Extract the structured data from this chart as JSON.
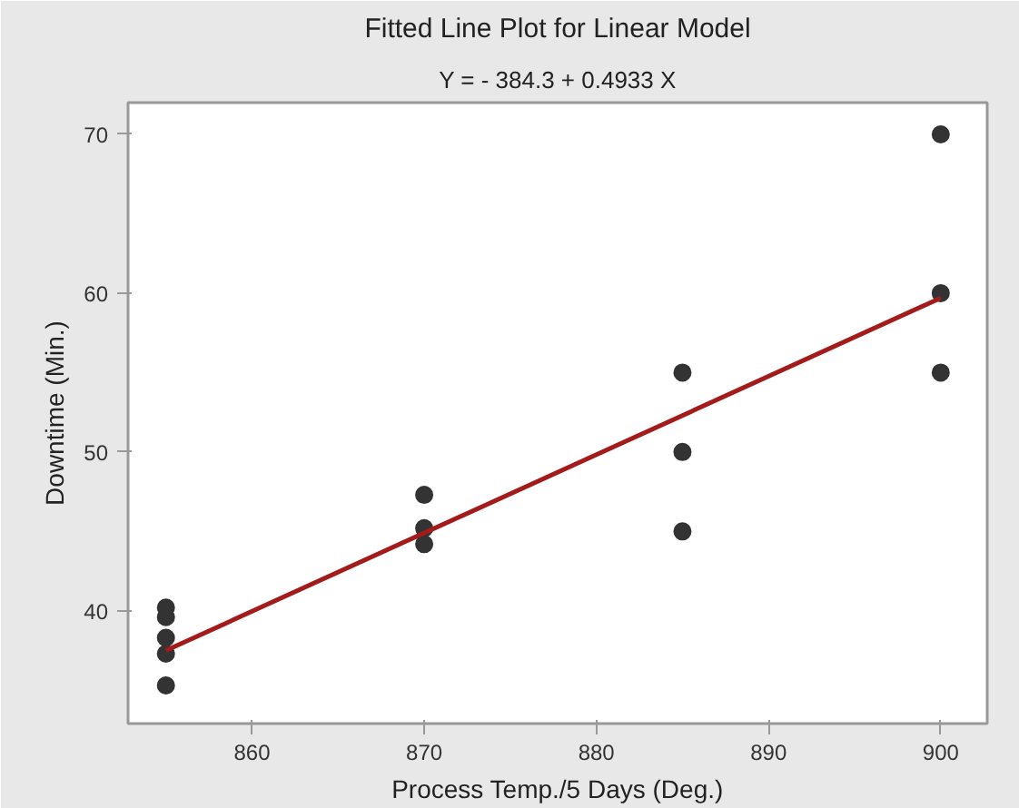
{
  "chart_data": {
    "type": "scatter",
    "title": "Fitted Line Plot for Linear Model",
    "subtitle": "Y = - 384.3 + 0.4933 X",
    "xlabel": "Process Temp./5 Days (Deg.)",
    "ylabel": "Downtime (Min.)",
    "series": [
      {
        "color": "#333333",
        "marker": "circle",
        "x": [
          855,
          855,
          855,
          855,
          855,
          870,
          870,
          870,
          885,
          885,
          885,
          900,
          900,
          900
        ],
        "values": [
          35.3,
          37.3,
          38.3,
          39.6,
          40.2,
          44.2,
          45.2,
          47.3,
          45,
          50,
          55,
          55,
          60,
          70
        ]
      },
      {
        "type": "line",
        "color": "#a31b1b",
        "marker": "none",
        "line_style": "solid",
        "x": [
          855,
          900
        ],
        "values": [
          37.5,
          59.7
        ]
      }
    ],
    "xlim": [
      852.8,
      902.7
    ],
    "ylim": [
      32.9,
      72
    ],
    "xticks": [
      860,
      870,
      880,
      890,
      900
    ],
    "yticks": [
      40,
      50,
      60,
      70
    ],
    "grid": false
  }
}
